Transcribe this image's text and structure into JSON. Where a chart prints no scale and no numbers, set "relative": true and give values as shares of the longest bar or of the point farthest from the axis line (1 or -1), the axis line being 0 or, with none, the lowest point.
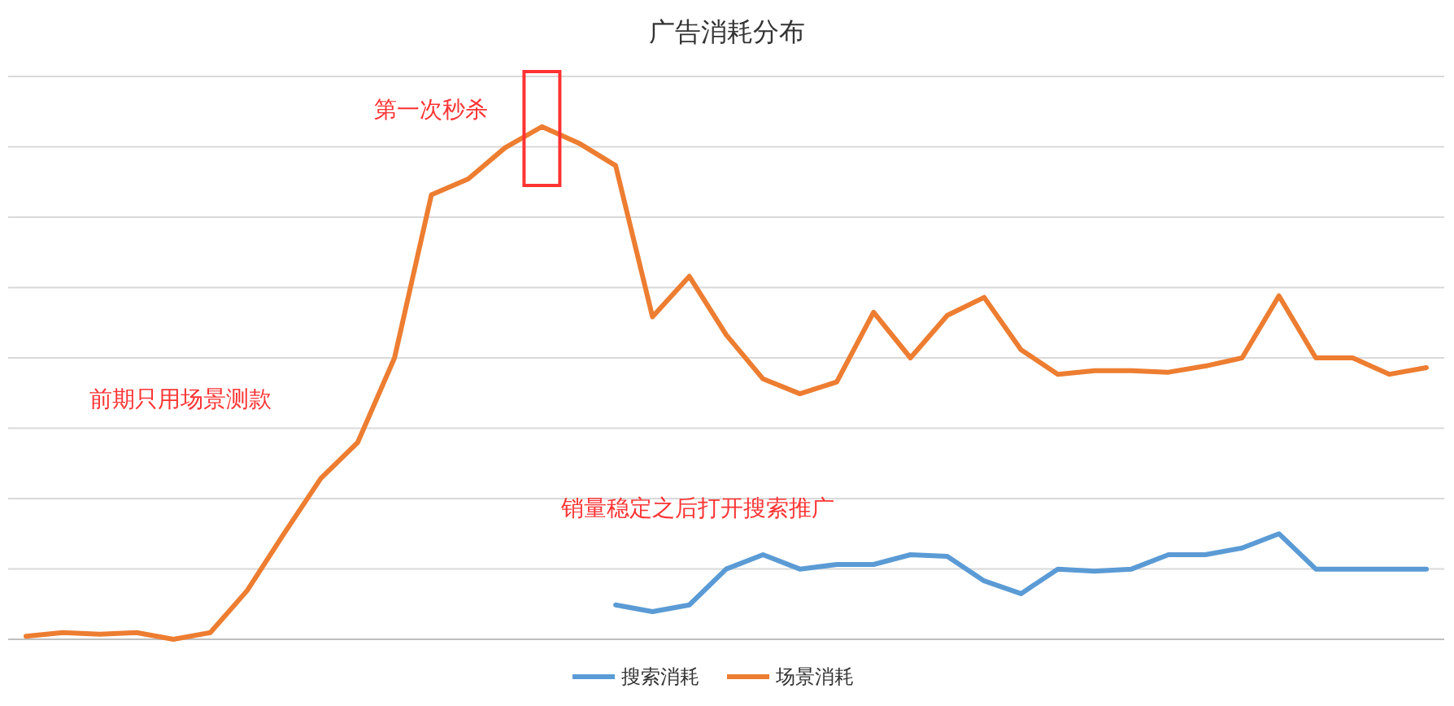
{
  "chart_data": {
    "type": "line",
    "title": "广告消耗分布",
    "relative": true,
    "grid": "y",
    "legend": "bottom",
    "categories": [
      null,
      null,
      null,
      null,
      null,
      null,
      null,
      null,
      null,
      null,
      null,
      null,
      null,
      null,
      null,
      null,
      null,
      null,
      null,
      null,
      null,
      null,
      null,
      null,
      null,
      null,
      null,
      null,
      null,
      null,
      null,
      null,
      null,
      null,
      null,
      null,
      null,
      null,
      null
    ],
    "series": [
      {
        "name": "搜索消耗",
        "color": "#5b9bd5",
        "values": [
          null,
          null,
          null,
          null,
          null,
          null,
          null,
          null,
          null,
          null,
          null,
          null,
          null,
          null,
          null,
          null,
          0.067,
          0.054,
          0.067,
          0.137,
          0.165,
          0.137,
          0.146,
          0.146,
          0.165,
          0.162,
          0.114,
          0.089,
          0.137,
          0.133,
          0.137,
          0.165,
          0.165,
          0.178,
          0.206,
          0.137,
          0.137,
          0.137,
          0.137
        ]
      },
      {
        "name": "场景消耗",
        "color": "#ed7d31",
        "values": [
          0.006,
          0.013,
          0.01,
          0.013,
          0,
          0.013,
          0.095,
          0.206,
          0.314,
          0.384,
          0.549,
          0.867,
          0.898,
          0.959,
          1,
          0.968,
          0.924,
          0.629,
          0.708,
          0.594,
          0.508,
          0.479,
          0.502,
          0.638,
          0.549,
          0.632,
          0.667,
          0.565,
          0.517,
          0.524,
          0.524,
          0.521,
          0.533,
          0.549,
          0.67,
          0.549,
          0.549,
          0.517,
          0.53
        ]
      }
    ],
    "annotations": [
      "第一次秒杀",
      "前期只用场景测款",
      "销量稳定之后打开搜索推广"
    ]
  }
}
